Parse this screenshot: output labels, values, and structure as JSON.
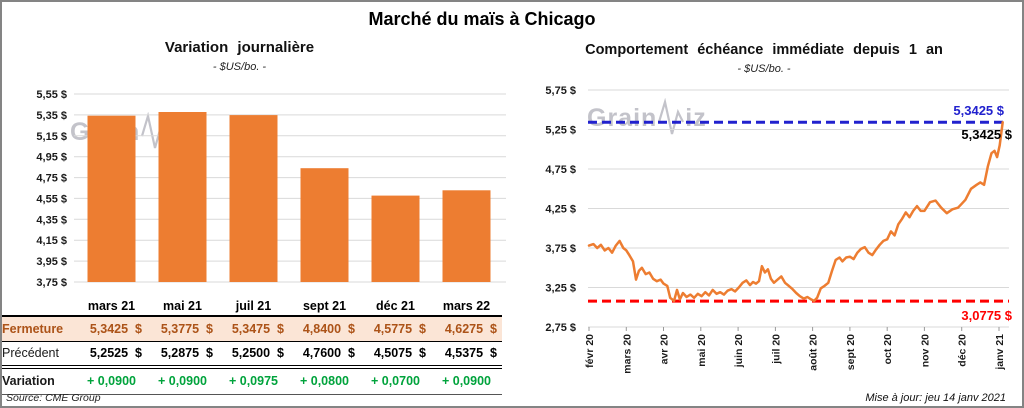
{
  "page": {
    "title": "Marché du maïs à Chicago",
    "source": "Source: CME Group",
    "updated": "Mise à jour: jeu 14 janv 2021",
    "watermark": {
      "prefix": "Grain",
      "suffix": "iz"
    }
  },
  "colors": {
    "orange": "#ED7D31",
    "blue": "#2121CE",
    "red": "#FF0000",
    "green": "#00A33C",
    "fermeture_text": "#AC5318",
    "fermeture_bg": "#FBE5D6",
    "grid": "#D9D9D9",
    "tick": "#999999"
  },
  "chart_data": [
    {
      "type": "bar",
      "title": "Variation journalière",
      "subtitle": "- $US/bo. -",
      "categories": [
        "mars 21",
        "mai 21",
        "juil 21",
        "sept 21",
        "déc 21",
        "mars 22"
      ],
      "values": [
        5.3425,
        5.3775,
        5.3475,
        4.84,
        4.5775,
        4.6275
      ],
      "ylim": [
        3.75,
        5.55
      ],
      "yticks": [
        3.75,
        3.95,
        4.15,
        4.35,
        4.55,
        4.75,
        4.95,
        5.15,
        5.35,
        5.55
      ],
      "ytick_labels": [
        "3,75 $",
        "3,95 $",
        "4,15 $",
        "4,35 $",
        "4,55 $",
        "4,75 $",
        "4,95 $",
        "5,15 $",
        "5,35 $",
        "5,55 $"
      ],
      "bar_color": "#ED7D31",
      "grid": true,
      "legend": "none"
    },
    {
      "type": "line",
      "title": "Comportement échéance immédiate depuis 1 an",
      "subtitle": "- $US/bo. -",
      "x_tick_labels": [
        "févr 20",
        "mars 20",
        "avr 20",
        "mai 20",
        "juin 20",
        "juil 20",
        "août 20",
        "sept 20",
        "oct 20",
        "nov 20",
        "déc 20",
        "janv 21"
      ],
      "ylim": [
        2.75,
        5.75
      ],
      "yticks": [
        2.75,
        3.25,
        3.75,
        4.25,
        4.75,
        5.25,
        5.75
      ],
      "ytick_labels": [
        "2,75 $",
        "3,25 $",
        "3,75 $",
        "4,25 $",
        "4,75 $",
        "5,25 $",
        "5,75 $"
      ],
      "line_color": "#ED7D31",
      "grid": true,
      "series": [
        {
          "name": "échéance immédiate",
          "x": [
            0.0,
            0.12,
            0.22,
            0.32,
            0.42,
            0.52,
            0.62,
            0.72,
            0.82,
            0.92,
            1.0,
            1.08,
            1.18,
            1.26,
            1.34,
            1.42,
            1.52,
            1.62,
            1.72,
            1.82,
            1.92,
            2.0,
            2.1,
            2.18,
            2.28,
            2.36,
            2.44,
            2.52,
            2.62,
            2.72,
            2.82,
            2.92,
            3.02,
            3.12,
            3.22,
            3.32,
            3.42,
            3.52,
            3.62,
            3.72,
            3.82,
            3.92,
            4.02,
            4.12,
            4.22,
            4.32,
            4.4,
            4.48,
            4.56,
            4.64,
            4.72,
            4.8,
            4.88,
            4.96,
            5.06,
            5.16,
            5.26,
            5.36,
            5.46,
            5.56,
            5.66,
            5.76,
            5.86,
            5.96,
            6.04,
            6.12,
            6.22,
            6.32,
            6.42,
            6.52,
            6.62,
            6.72,
            6.8,
            6.9,
            7.0,
            7.1,
            7.2,
            7.3,
            7.4,
            7.5,
            7.6,
            7.7,
            7.8,
            7.9,
            8.0,
            8.1,
            8.2,
            8.3,
            8.4,
            8.5,
            8.6,
            8.7,
            8.8,
            8.9,
            9.0,
            9.15,
            9.3,
            9.45,
            9.6,
            9.75,
            9.9,
            10.0,
            10.1,
            10.25,
            10.4,
            10.5,
            10.6,
            10.7,
            10.8,
            10.88,
            10.95,
            11.02,
            11.1
          ],
          "y": [
            3.78,
            3.8,
            3.75,
            3.79,
            3.72,
            3.75,
            3.69,
            3.78,
            3.84,
            3.75,
            3.72,
            3.66,
            3.58,
            3.35,
            3.46,
            3.5,
            3.42,
            3.44,
            3.36,
            3.33,
            3.35,
            3.3,
            3.27,
            3.12,
            3.08,
            3.22,
            3.1,
            3.18,
            3.13,
            3.16,
            3.12,
            3.17,
            3.14,
            3.19,
            3.15,
            3.22,
            3.17,
            3.19,
            3.16,
            3.21,
            3.23,
            3.2,
            3.25,
            3.31,
            3.34,
            3.28,
            3.32,
            3.3,
            3.33,
            3.52,
            3.44,
            3.48,
            3.36,
            3.31,
            3.35,
            3.39,
            3.31,
            3.27,
            3.23,
            3.18,
            3.14,
            3.11,
            3.13,
            3.1,
            3.08,
            3.12,
            3.24,
            3.27,
            3.31,
            3.46,
            3.6,
            3.63,
            3.58,
            3.63,
            3.64,
            3.61,
            3.69,
            3.74,
            3.76,
            3.69,
            3.66,
            3.73,
            3.79,
            3.84,
            3.86,
            3.96,
            3.91,
            4.05,
            4.12,
            4.2,
            4.14,
            4.22,
            4.28,
            4.22,
            4.22,
            4.33,
            4.35,
            4.26,
            4.19,
            4.24,
            4.26,
            4.31,
            4.36,
            4.5,
            4.55,
            4.58,
            4.55,
            4.78,
            4.95,
            4.98,
            4.9,
            5.05,
            5.3425
          ]
        }
      ],
      "ref_lines": [
        {
          "value": 5.3425,
          "color": "#2121CE",
          "label": "5,3425 $",
          "label_pos": "above"
        },
        {
          "value": 3.0775,
          "color": "#FF0000",
          "label": "3,0775 $",
          "label_pos": "below"
        }
      ],
      "last_value_label": "5,3425 $"
    }
  ],
  "table": {
    "columns": [
      "mars 21",
      "mai 21",
      "juil 21",
      "sept 21",
      "déc 21",
      "mars 22"
    ],
    "rows": [
      {
        "label": "Fermeture",
        "style": "fermeture",
        "unit": "$",
        "values": [
          "5,3425",
          "5,3775",
          "5,3475",
          "4,8400",
          "4,5775",
          "4,6275"
        ]
      },
      {
        "label": "Précédent",
        "style": "precedent",
        "unit": "$",
        "values": [
          "5,2525",
          "5,2875",
          "5,2500",
          "4,7600",
          "4,5075",
          "4,5375"
        ]
      },
      {
        "label": "Variation",
        "style": "variation",
        "unit": "",
        "values": [
          "+ 0,0900",
          "+ 0,0900",
          "+ 0,0975",
          "+ 0,0800",
          "+ 0,0700",
          "+ 0,0900"
        ]
      }
    ]
  }
}
